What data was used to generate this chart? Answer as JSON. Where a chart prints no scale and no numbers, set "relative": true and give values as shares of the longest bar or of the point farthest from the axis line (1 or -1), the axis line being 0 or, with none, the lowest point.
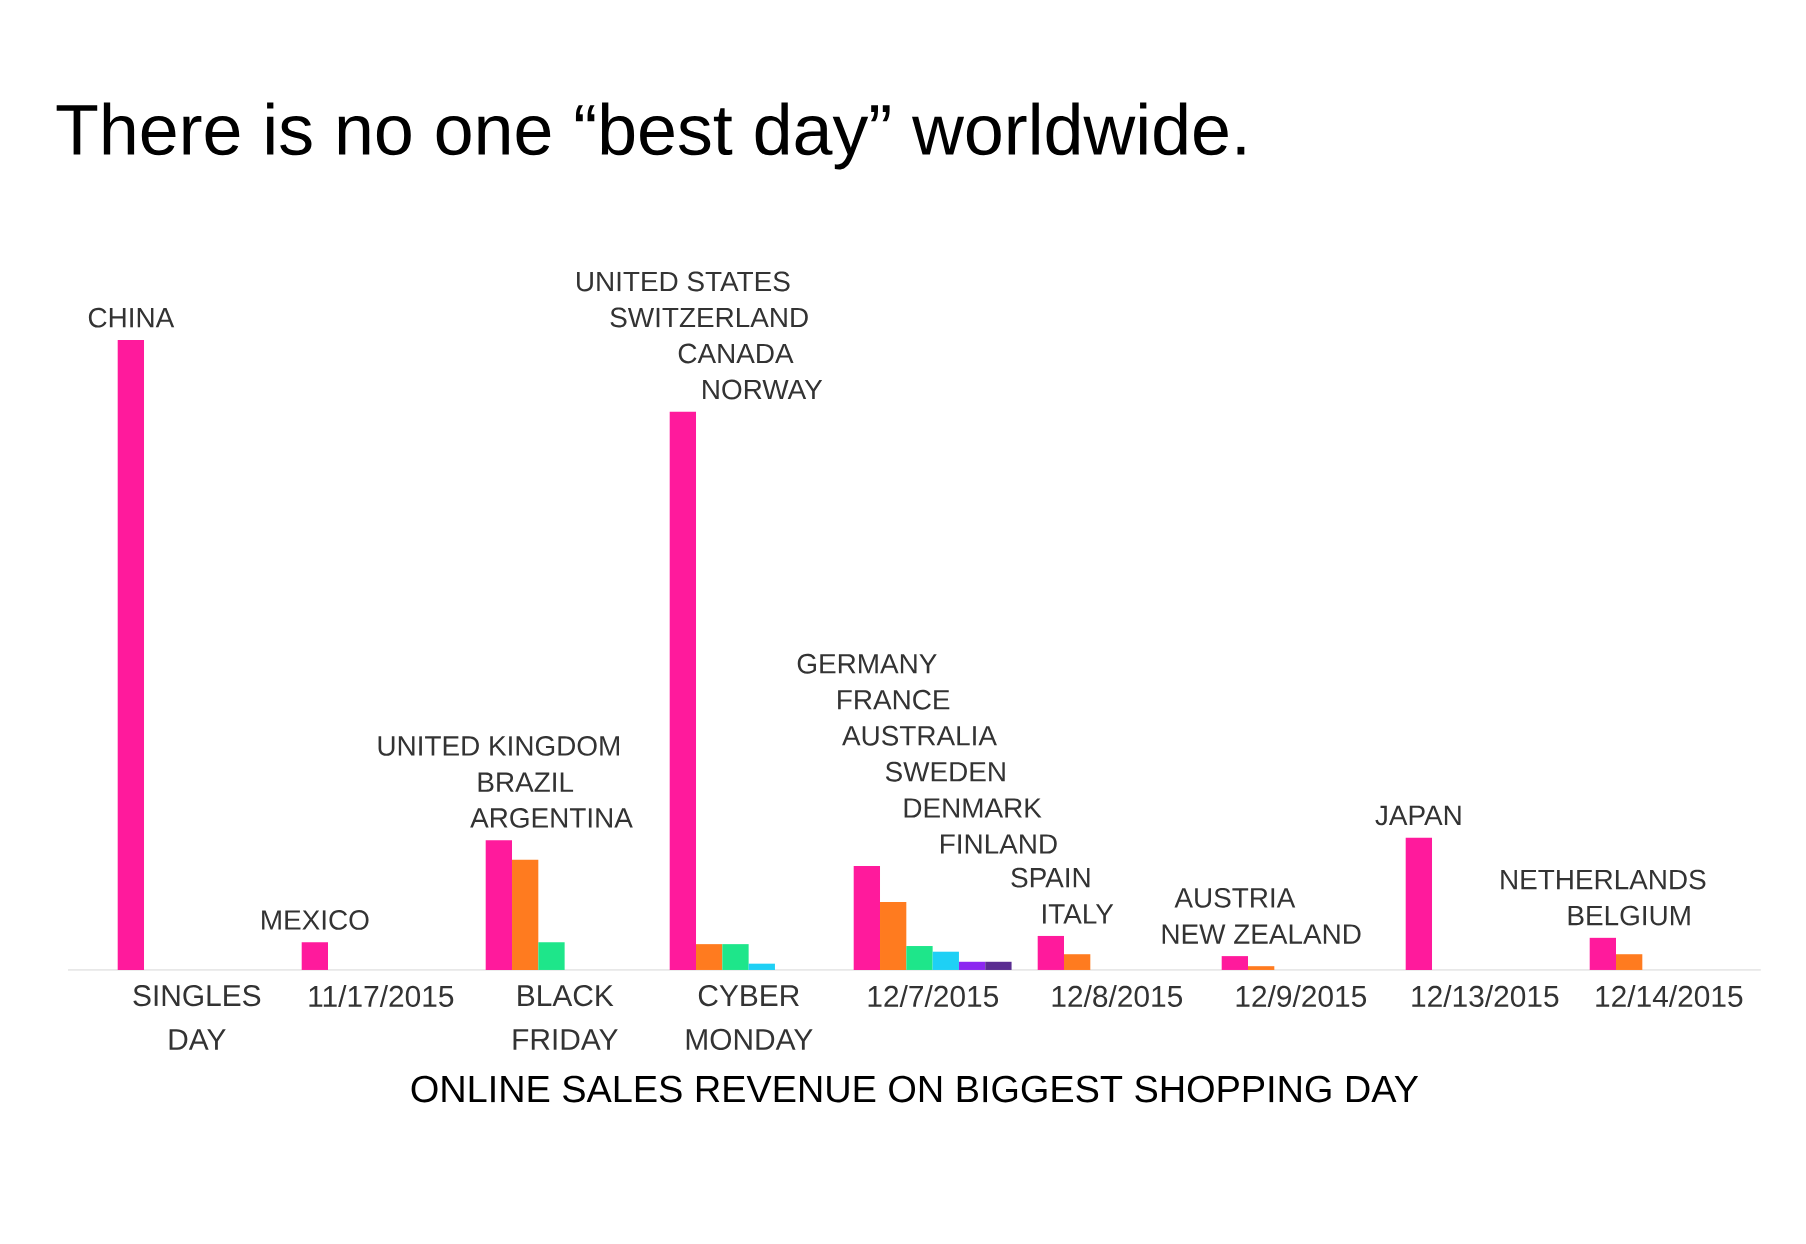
{
  "chart_data": {
    "type": "bar",
    "title": "There is no one “best day” worldwide.",
    "xlabel": "ONLINE SALES REVENUE ON BIGGEST SHOPPING DAY",
    "relative": true,
    "categories": [
      "SINGLES DAY",
      "11/17/2015",
      "BLACK FRIDAY",
      "CYBER MONDAY",
      "12/7/2015",
      "12/8/2015",
      "12/9/2015",
      "12/13/2015",
      "12/14/2015"
    ],
    "series": [
      {
        "color": "#ff1a9c",
        "values": [
          1,
          0.044,
          0.206,
          0.886,
          0.165,
          0.054,
          0.022,
          0.21,
          0.051
        ]
      },
      {
        "color": "#ff7b1f",
        "values": [
          null,
          null,
          0.175,
          0.041,
          0.108,
          0.025,
          0.006,
          null,
          0.025
        ]
      },
      {
        "color": "#1ee68a",
        "values": [
          null,
          null,
          0.044,
          0.041,
          0.038,
          null,
          null,
          null,
          null
        ]
      },
      {
        "color": "#1ed0f5",
        "values": [
          null,
          null,
          null,
          0.01,
          0.029,
          null,
          null,
          null,
          null
        ]
      },
      {
        "color": "#8c28f0",
        "values": [
          null,
          null,
          null,
          null,
          0.013,
          null,
          null,
          null,
          null
        ]
      },
      {
        "color": "#5a2d91",
        "values": [
          null,
          null,
          null,
          null,
          0.013,
          null,
          null,
          null,
          null
        ]
      }
    ],
    "annotations": [
      "CHINA",
      "MEXICO",
      "UNITED KINGDOM",
      "BRAZIL",
      "ARGENTINA",
      "UNITED STATES",
      "SWITZERLAND",
      "CANADA",
      "NORWAY",
      "GERMANY",
      "FRANCE",
      "AUSTRALIA",
      "SWEDEN",
      "DENMARK",
      "FINLAND",
      "SPAIN",
      "ITALY",
      "AUSTRIA",
      "NEW ZEALAND",
      "JAPAN",
      "NETHERLANDS",
      "BELGIUM"
    ]
  }
}
